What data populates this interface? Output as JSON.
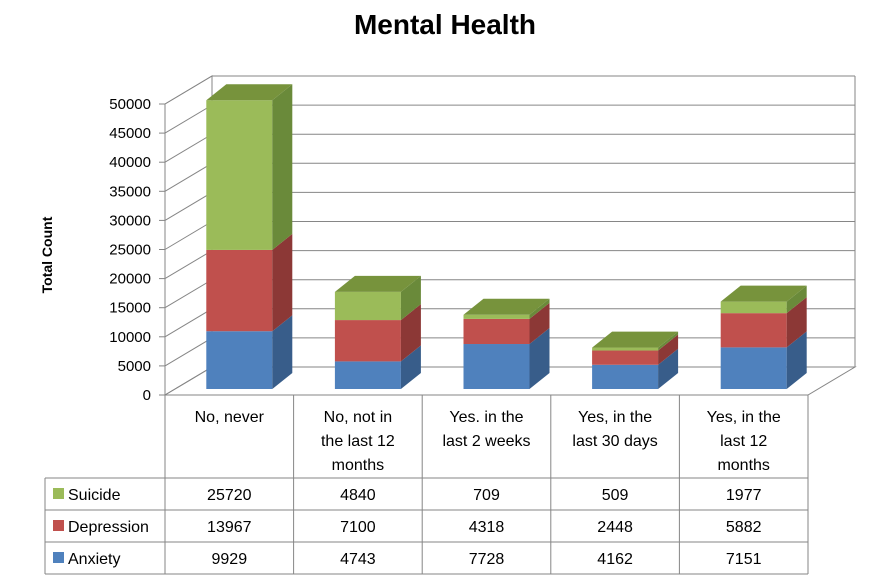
{
  "chart_data": {
    "type": "bar",
    "stacked": true,
    "three_d": true,
    "title": "Mental Health",
    "ylabel": "Total Count",
    "xlabel": "",
    "ylim": [
      0,
      50000
    ],
    "yticks": [
      0,
      5000,
      10000,
      15000,
      20000,
      25000,
      30000,
      35000,
      40000,
      45000,
      50000
    ],
    "grid": true,
    "legend": "data-table",
    "categories": [
      "No, never",
      "No, not in the last 12 months",
      "Yes. in the last 2 weeks",
      "Yes, in the last 30 days",
      "Yes, in the last 12 months"
    ],
    "category_lines": [
      [
        "No, never"
      ],
      [
        "No, not in",
        "the last 12",
        "months"
      ],
      [
        "Yes. in the",
        "last 2 weeks"
      ],
      [
        "Yes, in the",
        "last 30 days"
      ],
      [
        "Yes, in the",
        "last 12",
        "months"
      ]
    ],
    "series": [
      {
        "name": "Anxiety",
        "color": "#4f81bd",
        "side": "#385d8a",
        "top": "#6f97c9",
        "values": [
          9929,
          4743,
          7728,
          4162,
          7151
        ]
      },
      {
        "name": "Depression",
        "color": "#c0504d",
        "side": "#8c3836",
        "top": "#cd6f6c",
        "values": [
          13967,
          7100,
          4318,
          2448,
          5882
        ]
      },
      {
        "name": "Suicide",
        "color": "#9bbb59",
        "side": "#6a8a3a",
        "top": "#77933c",
        "values": [
          25720,
          4840,
          709,
          509,
          1977
        ]
      }
    ],
    "table_order": [
      "Suicide",
      "Depression",
      "Anxiety"
    ]
  }
}
